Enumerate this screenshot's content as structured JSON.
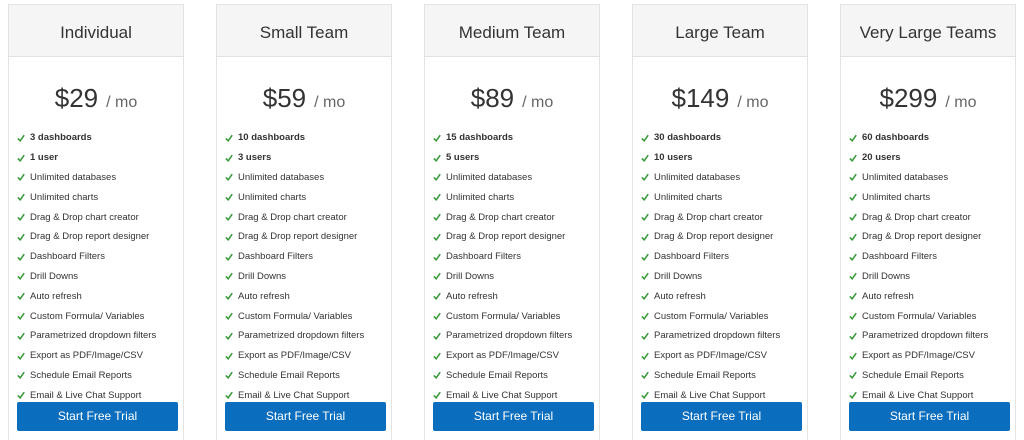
{
  "plans": [
    {
      "name": "Individual",
      "price": "$29",
      "period": "/ mo",
      "features": [
        "3 dashboards",
        "1 user",
        "Unlimited databases",
        "Unlimited charts",
        "Drag & Drop chart creator",
        "Drag & Drop report designer",
        "Dashboard Filters",
        "Drill Downs",
        "Auto refresh",
        "Custom Formula/ Variables",
        "Parametrized dropdown filters",
        "Export as PDF/Image/CSV",
        "Schedule Email Reports",
        "Email & Live Chat Support"
      ],
      "button": "Start Free Trial"
    },
    {
      "name": "Small Team",
      "price": "$59",
      "period": "/ mo",
      "features": [
        "10 dashboards",
        "3 users",
        "Unlimited databases",
        "Unlimited charts",
        "Drag & Drop chart creator",
        "Drag & Drop report designer",
        "Dashboard Filters",
        "Drill Downs",
        "Auto refresh",
        "Custom Formula/ Variables",
        "Parametrized dropdown filters",
        "Export as PDF/Image/CSV",
        "Schedule Email Reports",
        "Email & Live Chat Support"
      ],
      "button": "Start Free Trial"
    },
    {
      "name": "Medium Team",
      "price": "$89",
      "period": "/ mo",
      "features": [
        "15 dashboards",
        "5 users",
        "Unlimited databases",
        "Unlimited charts",
        "Drag & Drop chart creator",
        "Drag & Drop report designer",
        "Dashboard Filters",
        "Drill Downs",
        "Auto refresh",
        "Custom Formula/ Variables",
        "Parametrized dropdown filters",
        "Export as PDF/Image/CSV",
        "Schedule Email Reports",
        "Email & Live Chat Support"
      ],
      "button": "Start Free Trial"
    },
    {
      "name": "Large Team",
      "price": "$149",
      "period": "/ mo",
      "features": [
        "30 dashboards",
        "10 users",
        "Unlimited databases",
        "Unlimited charts",
        "Drag & Drop chart creator",
        "Drag & Drop report designer",
        "Dashboard Filters",
        "Drill Downs",
        "Auto refresh",
        "Custom Formula/ Variables",
        "Parametrized dropdown filters",
        "Export as PDF/Image/CSV",
        "Schedule Email Reports",
        "Email & Live Chat Support"
      ],
      "button": "Start Free Trial"
    },
    {
      "name": "Very Large Teams",
      "price": "$299",
      "period": "/ mo",
      "features": [
        "60 dashboards",
        "20 users",
        "Unlimited databases",
        "Unlimited charts",
        "Drag & Drop chart creator",
        "Drag & Drop report designer",
        "Dashboard Filters",
        "Drill Downs",
        "Auto refresh",
        "Custom Formula/ Variables",
        "Parametrized dropdown filters",
        "Export as PDF/Image/CSV",
        "Schedule Email Reports",
        "Email & Live Chat Support"
      ],
      "button": "Start Free Trial"
    }
  ]
}
